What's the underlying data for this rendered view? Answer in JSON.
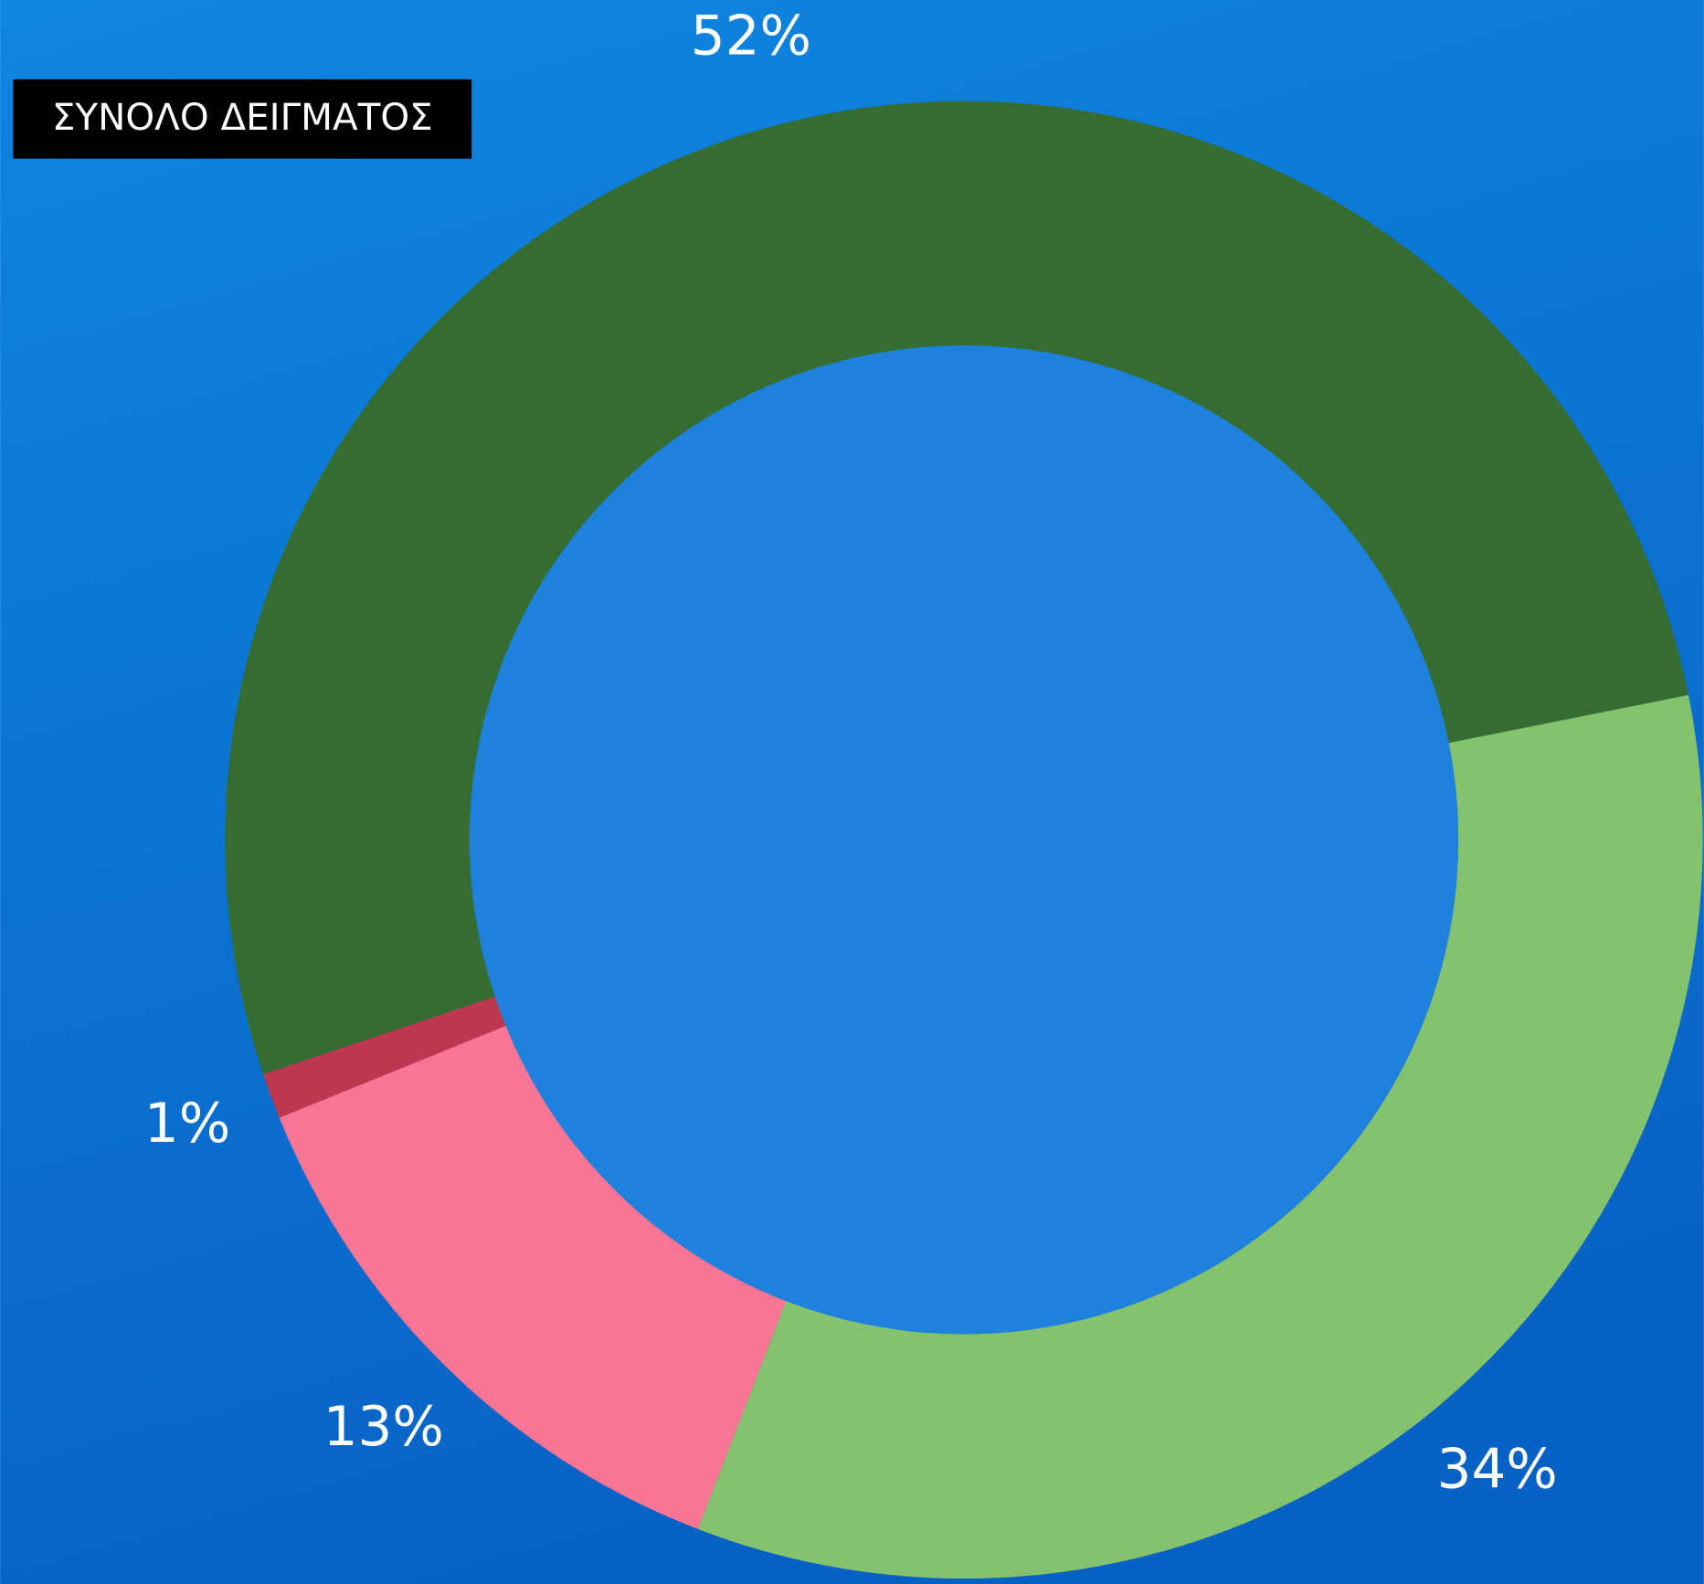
{
  "chart_data": {
    "type": "pie",
    "title": "ΣΥΝΟΛΟ ΔΕΙΓΜΑΤΟΣ",
    "values": [
      52,
      34,
      13,
      1
    ],
    "value_labels": [
      "52%",
      "34%",
      "13%",
      "1%"
    ],
    "colors": [
      "#356c32",
      "#85c26e",
      "#f97595",
      "#c0384f"
    ],
    "donut": true
  }
}
